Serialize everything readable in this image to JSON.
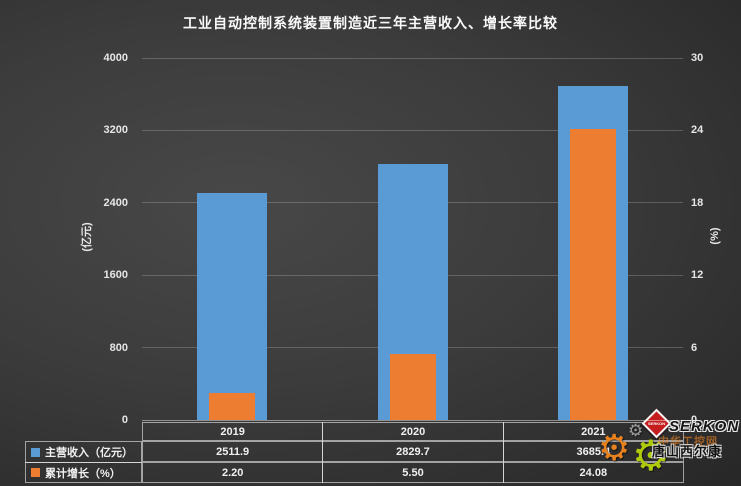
{
  "title": "工业自动控制系统装置制造近三年主营收入、增长率比较",
  "chart_data": {
    "type": "bar",
    "categories": [
      "2019",
      "2020",
      "2021"
    ],
    "series": [
      {
        "name": "主营收入（亿元）",
        "values": [
          2511.9,
          2829.7,
          3685.4
        ],
        "labels": [
          "2511.9",
          "2829.7",
          "3685.4"
        ],
        "color": "#5B9BD5",
        "axis": "left"
      },
      {
        "name": "累计增长（%）",
        "values": [
          2.2,
          5.5,
          24.08
        ],
        "labels": [
          "2.20",
          "5.50",
          "24.08"
        ],
        "color": "#ED7D31",
        "axis": "right"
      }
    ],
    "left_axis": {
      "label": "(亿元)",
      "min": 0,
      "max": 4000,
      "step": 800,
      "ticks": [
        "0",
        "800",
        "1600",
        "2400",
        "3200",
        "4000"
      ]
    },
    "right_axis": {
      "label": "(%)",
      "min": 0,
      "max": 30,
      "step": 6,
      "ticks": [
        "0",
        "6",
        "12",
        "18",
        "24",
        "30"
      ]
    },
    "grid": true,
    "legend_position": "table-left",
    "style": {
      "background_dark": "#3c3c3c",
      "text_color": "#f2f2f2"
    }
  },
  "watermark": {
    "brand": "SERKON",
    "brand_cn": "唐山西尔康",
    "faint_text": "中华工控网",
    "diamond_color": "#C41E1E",
    "gear_colors": [
      "#E8821E",
      "#AFCA0B",
      "#9a9a9a"
    ]
  }
}
